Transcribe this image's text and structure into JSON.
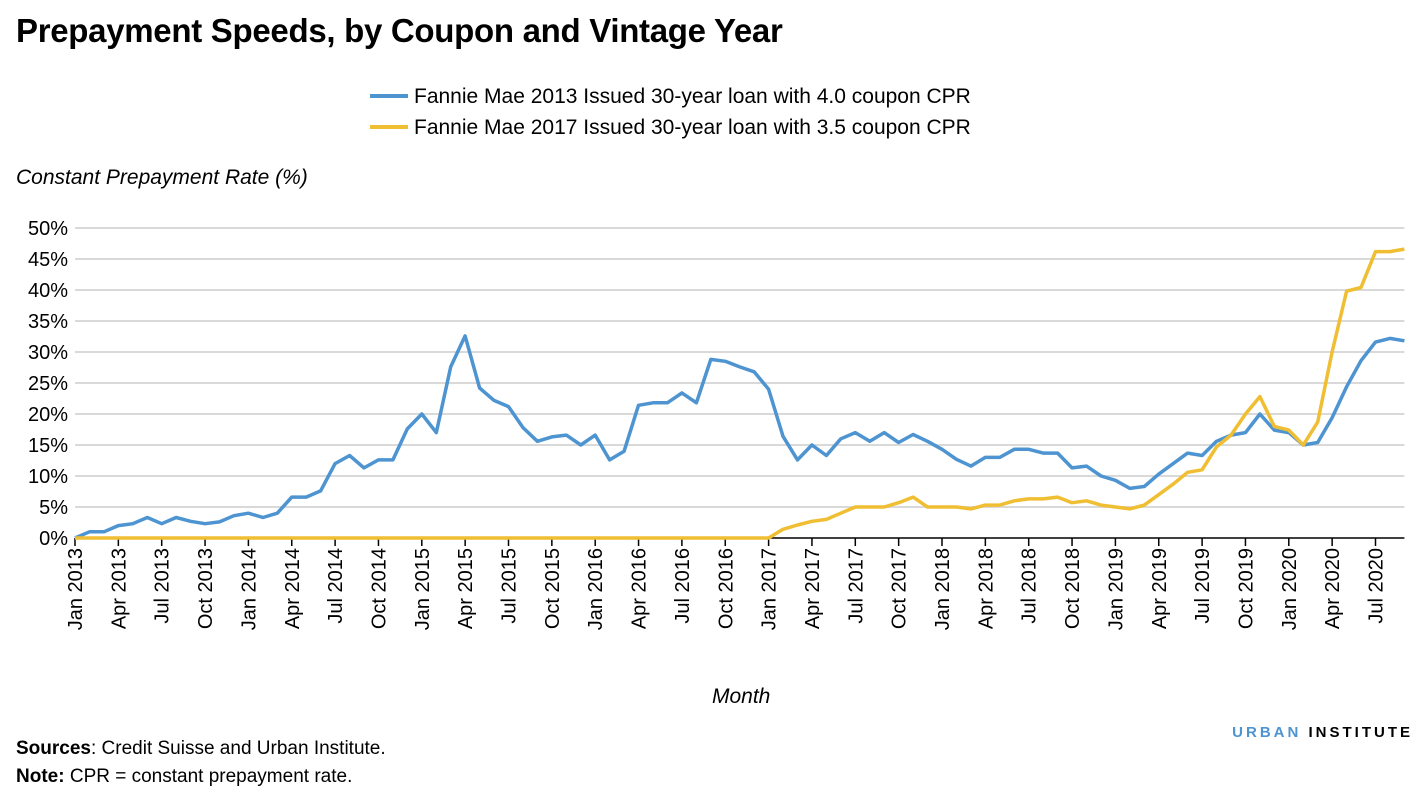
{
  "title": "Prepayment Speeds, by Coupon and Vintage Year",
  "sources_label": "Sources",
  "sources_text": ": Credit Suisse and Urban Institute.",
  "note_label": "Note:",
  "note_text": " CPR = constant prepayment rate.",
  "logo": {
    "part1": "URBAN",
    "part2": "INSTITUTE"
  },
  "chart_data": {
    "type": "line",
    "title": "Prepayment Speeds, by Coupon and Vintage Year",
    "xlabel": "Month",
    "ylabel": "Constant Prepayment Rate (%)",
    "ylim": [
      0,
      50
    ],
    "yticks": [
      "0%",
      "5%",
      "10%",
      "15%",
      "20%",
      "25%",
      "30%",
      "35%",
      "40%",
      "45%",
      "50%"
    ],
    "grid": true,
    "legend_position": "top-center",
    "x_start": "Jan 2013",
    "x_end": "Sep 2020",
    "xticks": [
      "Jan 2013",
      "Apr 2013",
      "Jul 2013",
      "Oct 2013",
      "Jan 2014",
      "Apr 2014",
      "Jul 2014",
      "Oct 2014",
      "Jan 2015",
      "Apr 2015",
      "Jul 2015",
      "Oct 2015",
      "Jan 2016",
      "Apr 2016",
      "Jul 2016",
      "Oct 2016",
      "Jan 2017",
      "Apr 2017",
      "Jul 2017",
      "Oct 2017",
      "Jan 2018",
      "Apr 2018",
      "Jul 2018",
      "Oct 2018",
      "Jan 2019",
      "Apr 2019",
      "Jul 2019",
      "Oct 2019",
      "Jan 2020",
      "Apr 2020",
      "Jul 2020"
    ],
    "series": [
      {
        "name": "Fannie Mae 2013 Issued 30-year loan with 4.0 coupon CPR",
        "color": "#4d94d1",
        "values": [
          0,
          1,
          1,
          2,
          2.3,
          3.3,
          2.3,
          3.3,
          2.7,
          2.3,
          2.6,
          3.6,
          4,
          3.3,
          4,
          6.6,
          6.6,
          7.6,
          12,
          13.3,
          11.3,
          12.6,
          12.6,
          17.6,
          20,
          17,
          27.6,
          32.6,
          24.2,
          22.2,
          21.2,
          17.8,
          15.6,
          16.3,
          16.6,
          15,
          16.6,
          12.6,
          14,
          21.4,
          21.8,
          21.8,
          23.4,
          21.8,
          28.8,
          28.5,
          27.6,
          26.8,
          24,
          16.4,
          12.6,
          15,
          13.3,
          16,
          17,
          15.6,
          17,
          15.4,
          16.7,
          15.6,
          14.3,
          12.7,
          11.6,
          13,
          13,
          14.3,
          14.3,
          13.7,
          13.7,
          11.3,
          11.6,
          10,
          9.3,
          8,
          8.3,
          10.3,
          12,
          13.7,
          13.3,
          15.6,
          16.6,
          17,
          20,
          17.4,
          17,
          15,
          15.4,
          19.4,
          24.4,
          28.6,
          31.6,
          32.2,
          31.8
        ]
      },
      {
        "name": "Fannie Mae 2017 Issued 30-year loan with 3.5 coupon CPR",
        "color": "#f0be32",
        "values": [
          0,
          0,
          0,
          0,
          0,
          0,
          0,
          0,
          0,
          0,
          0,
          0,
          0,
          0,
          0,
          0,
          0,
          0,
          0,
          0,
          0,
          0,
          0,
          0,
          0,
          0,
          0,
          0,
          0,
          0,
          0,
          0,
          0,
          0,
          0,
          0,
          0,
          0,
          0,
          0,
          0,
          0,
          0,
          0,
          0,
          0,
          0,
          0,
          0,
          1.4,
          2.1,
          2.7,
          3.0,
          4.0,
          5.0,
          5.0,
          5.0,
          5.7,
          6.6,
          5.0,
          5.0,
          5.0,
          4.7,
          5.3,
          5.3,
          6.0,
          6.3,
          6.3,
          6.6,
          5.7,
          6.0,
          5.3,
          5.0,
          4.7,
          5.3,
          7.0,
          8.7,
          10.6,
          11,
          14.7,
          16.6,
          20,
          22.8,
          18,
          17.4,
          15,
          18.7,
          30,
          39.8,
          40.4,
          46.2,
          46.2,
          46.6
        ]
      }
    ]
  }
}
